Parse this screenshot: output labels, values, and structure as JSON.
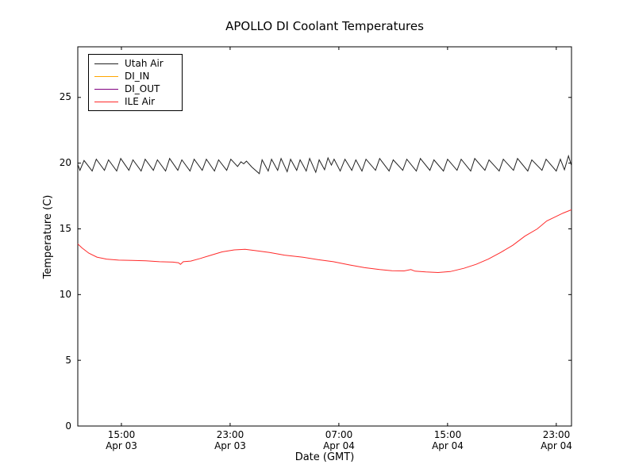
{
  "chart_data": {
    "type": "line",
    "title": "APOLLO DI Coolant Temperatures",
    "xlabel": "Date (GMT)",
    "ylabel": "Temperature (C)",
    "grid": false,
    "legend_position": "upper-left",
    "x_unit": "hours since Apr 03 00:00 GMT",
    "xlim": [
      11.79,
      48.12
    ],
    "ylim": [
      0,
      28.85
    ],
    "x_ticks": [
      {
        "value": 15,
        "time": "15:00",
        "date": "Apr 03"
      },
      {
        "value": 23,
        "time": "23:00",
        "date": "Apr 03"
      },
      {
        "value": 31,
        "time": "07:00",
        "date": "Apr 04"
      },
      {
        "value": 39,
        "time": "15:00",
        "date": "Apr 04"
      },
      {
        "value": 47,
        "time": "23:00",
        "date": "Apr 04"
      }
    ],
    "y_ticks": [
      {
        "value": 0,
        "label": "0"
      },
      {
        "value": 5,
        "label": "5"
      },
      {
        "value": 10,
        "label": "10"
      },
      {
        "value": 15,
        "label": "15"
      },
      {
        "value": 20,
        "label": "20"
      },
      {
        "value": 25,
        "label": "25"
      }
    ],
    "series": [
      {
        "name": "Utah Air",
        "color": "#222222",
        "data": [
          [
            11.79,
            19.9
          ],
          [
            11.95,
            19.45
          ],
          [
            12.25,
            20.2
          ],
          [
            12.85,
            19.4
          ],
          [
            13.15,
            20.3
          ],
          [
            13.75,
            19.45
          ],
          [
            14.05,
            20.25
          ],
          [
            14.65,
            19.4
          ],
          [
            14.95,
            20.35
          ],
          [
            15.55,
            19.45
          ],
          [
            15.85,
            20.25
          ],
          [
            16.45,
            19.4
          ],
          [
            16.75,
            20.3
          ],
          [
            17.35,
            19.45
          ],
          [
            17.65,
            20.25
          ],
          [
            18.25,
            19.4
          ],
          [
            18.55,
            20.35
          ],
          [
            19.15,
            19.45
          ],
          [
            19.45,
            20.25
          ],
          [
            20.05,
            19.4
          ],
          [
            20.35,
            20.3
          ],
          [
            20.95,
            19.45
          ],
          [
            21.25,
            20.3
          ],
          [
            21.85,
            19.4
          ],
          [
            22.15,
            20.25
          ],
          [
            22.75,
            19.45
          ],
          [
            23.05,
            20.3
          ],
          [
            23.55,
            19.75
          ],
          [
            23.8,
            20.1
          ],
          [
            24.0,
            19.95
          ],
          [
            24.2,
            20.15
          ],
          [
            24.6,
            19.7
          ],
          [
            25.15,
            19.2
          ],
          [
            25.35,
            20.25
          ],
          [
            25.8,
            19.4
          ],
          [
            26.05,
            20.3
          ],
          [
            26.5,
            19.45
          ],
          [
            26.75,
            20.35
          ],
          [
            27.2,
            19.35
          ],
          [
            27.45,
            20.3
          ],
          [
            27.9,
            19.45
          ],
          [
            28.15,
            20.25
          ],
          [
            28.6,
            19.4
          ],
          [
            28.85,
            20.35
          ],
          [
            29.3,
            19.3
          ],
          [
            29.55,
            20.25
          ],
          [
            29.95,
            19.5
          ],
          [
            30.2,
            20.4
          ],
          [
            30.45,
            19.85
          ],
          [
            30.65,
            20.3
          ],
          [
            31.1,
            19.4
          ],
          [
            31.45,
            20.3
          ],
          [
            31.95,
            19.45
          ],
          [
            32.25,
            20.25
          ],
          [
            32.7,
            19.4
          ],
          [
            33.0,
            20.3
          ],
          [
            33.7,
            19.45
          ],
          [
            34.0,
            20.35
          ],
          [
            34.7,
            19.4
          ],
          [
            35.0,
            20.25
          ],
          [
            35.7,
            19.45
          ],
          [
            36.0,
            20.3
          ],
          [
            36.7,
            19.4
          ],
          [
            37.0,
            20.35
          ],
          [
            37.7,
            19.45
          ],
          [
            38.0,
            20.25
          ],
          [
            38.7,
            19.4
          ],
          [
            39.0,
            20.3
          ],
          [
            39.7,
            19.45
          ],
          [
            40.0,
            20.3
          ],
          [
            40.7,
            19.4
          ],
          [
            41.0,
            20.35
          ],
          [
            41.75,
            19.45
          ],
          [
            42.05,
            20.25
          ],
          [
            42.8,
            19.4
          ],
          [
            43.1,
            20.3
          ],
          [
            43.85,
            19.45
          ],
          [
            44.15,
            20.35
          ],
          [
            44.9,
            19.4
          ],
          [
            45.2,
            20.25
          ],
          [
            45.95,
            19.45
          ],
          [
            46.25,
            20.3
          ],
          [
            47.0,
            19.4
          ],
          [
            47.3,
            20.3
          ],
          [
            47.6,
            19.5
          ],
          [
            47.9,
            20.55
          ],
          [
            48.12,
            19.8
          ]
        ]
      },
      {
        "name": "DI_IN",
        "color": "#ffa500",
        "data": []
      },
      {
        "name": "DI_OUT",
        "color": "#800080",
        "data": []
      },
      {
        "name": "ILE Air",
        "color": "#ff2a2a",
        "data": [
          [
            11.79,
            13.85
          ],
          [
            12.1,
            13.55
          ],
          [
            12.6,
            13.15
          ],
          [
            13.2,
            12.85
          ],
          [
            13.9,
            12.7
          ],
          [
            14.8,
            12.62
          ],
          [
            15.8,
            12.6
          ],
          [
            16.8,
            12.57
          ],
          [
            17.8,
            12.5
          ],
          [
            18.8,
            12.47
          ],
          [
            19.2,
            12.42
          ],
          [
            19.35,
            12.3
          ],
          [
            19.55,
            12.5
          ],
          [
            20.1,
            12.55
          ],
          [
            20.8,
            12.75
          ],
          [
            21.6,
            13.0
          ],
          [
            22.4,
            13.25
          ],
          [
            23.3,
            13.4
          ],
          [
            24.1,
            13.45
          ],
          [
            24.8,
            13.35
          ],
          [
            25.9,
            13.2
          ],
          [
            27.0,
            13.0
          ],
          [
            28.3,
            12.85
          ],
          [
            29.5,
            12.65
          ],
          [
            30.6,
            12.5
          ],
          [
            31.8,
            12.25
          ],
          [
            32.9,
            12.05
          ],
          [
            34.0,
            11.9
          ],
          [
            34.9,
            11.82
          ],
          [
            35.8,
            11.8
          ],
          [
            36.3,
            11.9
          ],
          [
            36.6,
            11.78
          ],
          [
            37.4,
            11.72
          ],
          [
            38.3,
            11.68
          ],
          [
            39.2,
            11.75
          ],
          [
            40.2,
            12.0
          ],
          [
            41.1,
            12.3
          ],
          [
            42.0,
            12.7
          ],
          [
            42.9,
            13.2
          ],
          [
            43.8,
            13.75
          ],
          [
            44.7,
            14.45
          ],
          [
            45.6,
            15.0
          ],
          [
            46.3,
            15.6
          ],
          [
            46.9,
            15.9
          ],
          [
            47.5,
            16.2
          ],
          [
            48.12,
            16.45
          ]
        ]
      }
    ]
  }
}
